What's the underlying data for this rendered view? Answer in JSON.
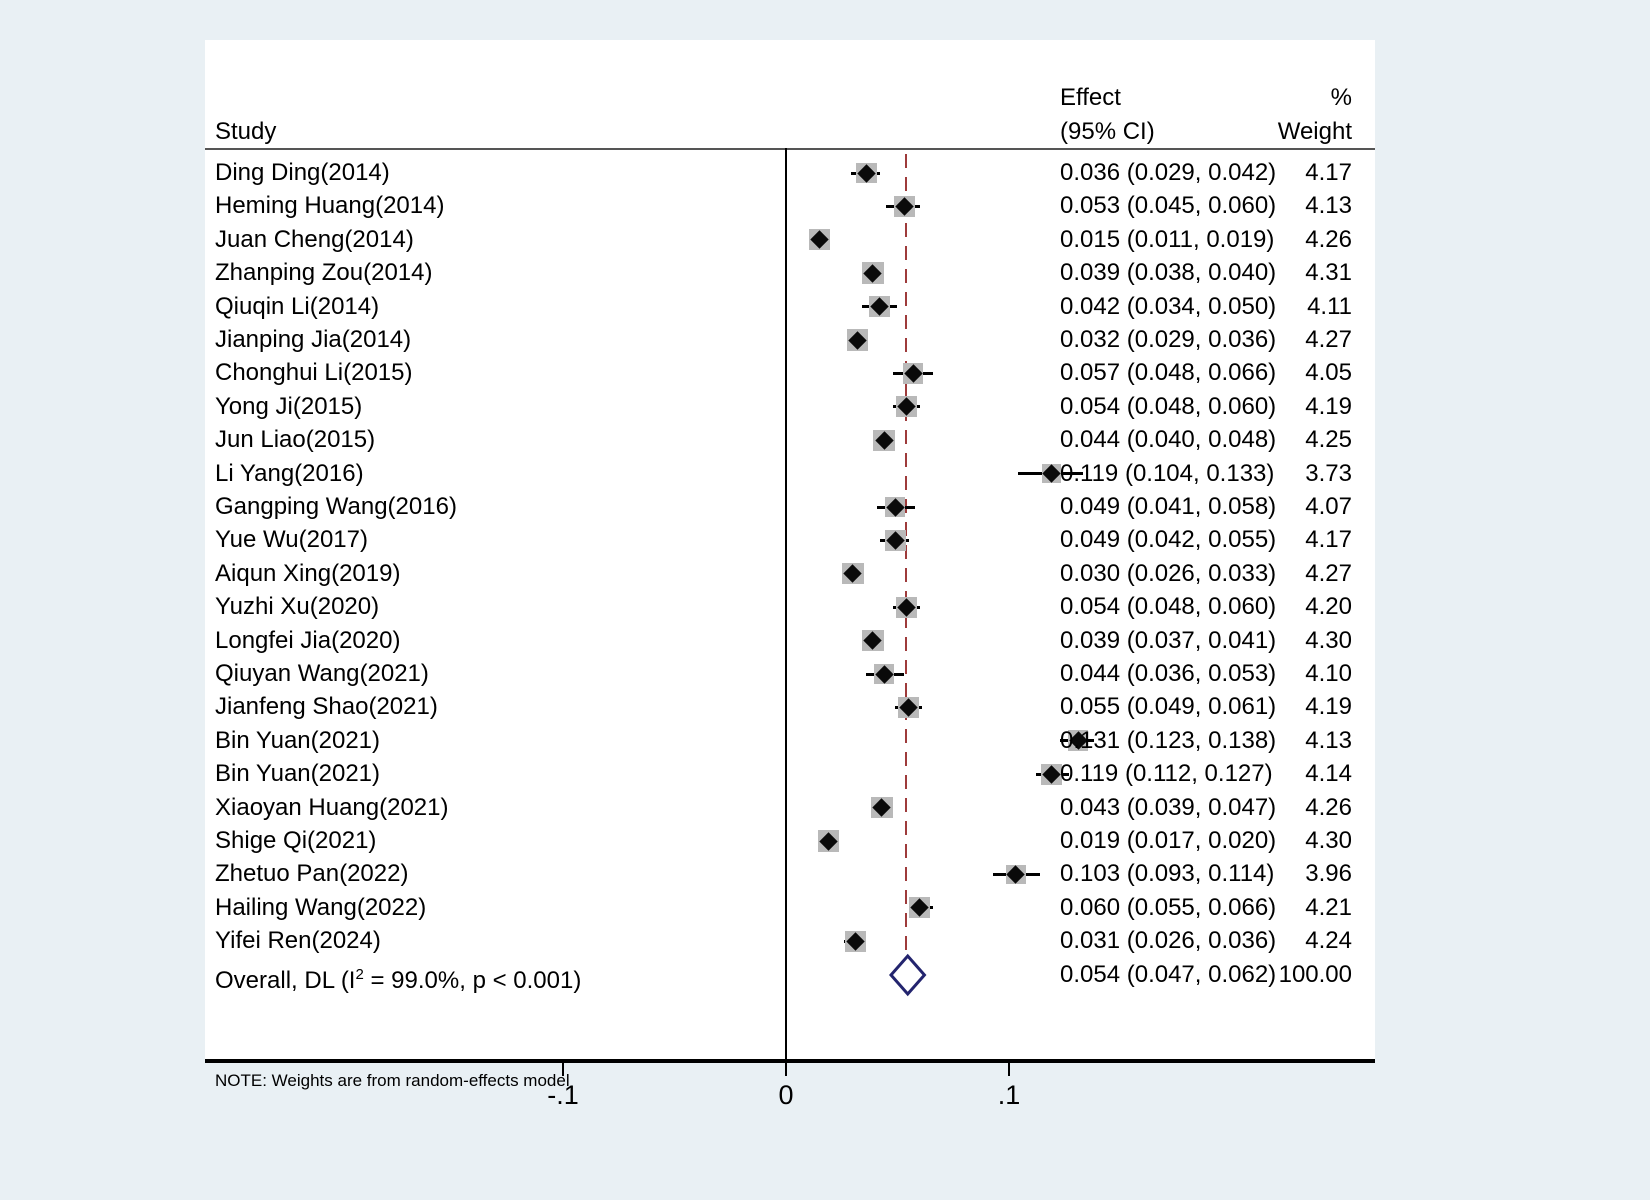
{
  "header": {
    "study": "Study",
    "effect_line1": "Effect",
    "effect_line2": "(95% CI)",
    "weight_line1": "%",
    "weight_line2": "Weight"
  },
  "note": "NOTE: Weights are from random-effects model",
  "colors": {
    "background": "#e9f0f4",
    "panel": "#ffffff",
    "marker": "#0a0a0a",
    "weight_box": "#b9b9b9",
    "dashed_line": "#9e3b3b",
    "overall_diamond": "#23246e"
  },
  "chart_data": {
    "type": "forest",
    "title": "",
    "xlabel": "",
    "x_axis": {
      "tick_labels": [
        "-.1",
        "0",
        ".1"
      ],
      "tick_values": [
        -0.1,
        0,
        0.1
      ],
      "zero_line": 0,
      "dashed_line_at": 0.054
    },
    "studies": [
      {
        "name": "Ding Ding(2014)",
        "est": 0.036,
        "lo": 0.029,
        "hi": 0.042,
        "weight": 4.17,
        "effect_label": "0.036 (0.029, 0.042)",
        "weight_label": "4.17"
      },
      {
        "name": "Heming Huang(2014)",
        "est": 0.053,
        "lo": 0.045,
        "hi": 0.06,
        "weight": 4.13,
        "effect_label": "0.053 (0.045, 0.060)",
        "weight_label": "4.13"
      },
      {
        "name": "Juan Cheng(2014)",
        "est": 0.015,
        "lo": 0.011,
        "hi": 0.019,
        "weight": 4.26,
        "effect_label": "0.015 (0.011, 0.019)",
        "weight_label": "4.26"
      },
      {
        "name": "Zhanping Zou(2014)",
        "est": 0.039,
        "lo": 0.038,
        "hi": 0.04,
        "weight": 4.31,
        "effect_label": "0.039 (0.038, 0.040)",
        "weight_label": "4.31"
      },
      {
        "name": "Qiuqin Li(2014)",
        "est": 0.042,
        "lo": 0.034,
        "hi": 0.05,
        "weight": 4.11,
        "effect_label": "0.042 (0.034, 0.050)",
        "weight_label": "4.11"
      },
      {
        "name": "Jianping Jia(2014)",
        "est": 0.032,
        "lo": 0.029,
        "hi": 0.036,
        "weight": 4.27,
        "effect_label": "0.032 (0.029, 0.036)",
        "weight_label": "4.27"
      },
      {
        "name": "Chonghui Li(2015)",
        "est": 0.057,
        "lo": 0.048,
        "hi": 0.066,
        "weight": 4.05,
        "effect_label": "0.057 (0.048, 0.066)",
        "weight_label": "4.05"
      },
      {
        "name": "Yong Ji(2015)",
        "est": 0.054,
        "lo": 0.048,
        "hi": 0.06,
        "weight": 4.19,
        "effect_label": "0.054 (0.048, 0.060)",
        "weight_label": "4.19"
      },
      {
        "name": "Jun Liao(2015)",
        "est": 0.044,
        "lo": 0.04,
        "hi": 0.048,
        "weight": 4.25,
        "effect_label": "0.044 (0.040, 0.048)",
        "weight_label": "4.25"
      },
      {
        "name": "Li Yang(2016)",
        "est": 0.119,
        "lo": 0.104,
        "hi": 0.133,
        "weight": 3.73,
        "effect_label": "0.119 (0.104, 0.133)",
        "weight_label": "3.73"
      },
      {
        "name": "Gangping Wang(2016)",
        "est": 0.049,
        "lo": 0.041,
        "hi": 0.058,
        "weight": 4.07,
        "effect_label": "0.049 (0.041, 0.058)",
        "weight_label": "4.07"
      },
      {
        "name": "Yue Wu(2017)",
        "est": 0.049,
        "lo": 0.042,
        "hi": 0.055,
        "weight": 4.17,
        "effect_label": "0.049 (0.042, 0.055)",
        "weight_label": "4.17"
      },
      {
        "name": "Aiqun Xing(2019)",
        "est": 0.03,
        "lo": 0.026,
        "hi": 0.033,
        "weight": 4.27,
        "effect_label": "0.030 (0.026, 0.033)",
        "weight_label": "4.27"
      },
      {
        "name": "Yuzhi Xu(2020)",
        "est": 0.054,
        "lo": 0.048,
        "hi": 0.06,
        "weight": 4.2,
        "effect_label": "0.054 (0.048, 0.060)",
        "weight_label": "4.20"
      },
      {
        "name": "Longfei Jia(2020)",
        "est": 0.039,
        "lo": 0.037,
        "hi": 0.041,
        "weight": 4.3,
        "effect_label": "0.039 (0.037, 0.041)",
        "weight_label": "4.30"
      },
      {
        "name": "Qiuyan Wang(2021)",
        "est": 0.044,
        "lo": 0.036,
        "hi": 0.053,
        "weight": 4.1,
        "effect_label": "0.044 (0.036, 0.053)",
        "weight_label": "4.10"
      },
      {
        "name": "Jianfeng Shao(2021)",
        "est": 0.055,
        "lo": 0.049,
        "hi": 0.061,
        "weight": 4.19,
        "effect_label": "0.055 (0.049, 0.061)",
        "weight_label": "4.19"
      },
      {
        "name": "Bin Yuan(2021)",
        "est": 0.131,
        "lo": 0.123,
        "hi": 0.138,
        "weight": 4.13,
        "effect_label": "0.131 (0.123, 0.138)",
        "weight_label": "4.13"
      },
      {
        "name": "Bin Yuan(2021)",
        "est": 0.119,
        "lo": 0.112,
        "hi": 0.127,
        "weight": 4.14,
        "effect_label": "0.119 (0.112, 0.127)",
        "weight_label": "4.14"
      },
      {
        "name": "Xiaoyan Huang(2021)",
        "est": 0.043,
        "lo": 0.039,
        "hi": 0.047,
        "weight": 4.26,
        "effect_label": "0.043 (0.039, 0.047)",
        "weight_label": "4.26"
      },
      {
        "name": "Shige Qi(2021)",
        "est": 0.019,
        "lo": 0.017,
        "hi": 0.02,
        "weight": 4.3,
        "effect_label": "0.019 (0.017, 0.020)",
        "weight_label": "4.30"
      },
      {
        "name": "Zhetuo Pan(2022)",
        "est": 0.103,
        "lo": 0.093,
        "hi": 0.114,
        "weight": 3.96,
        "effect_label": "0.103 (0.093, 0.114)",
        "weight_label": "3.96"
      },
      {
        "name": "Hailing Wang(2022)",
        "est": 0.06,
        "lo": 0.055,
        "hi": 0.066,
        "weight": 4.21,
        "effect_label": "0.060 (0.055, 0.066)",
        "weight_label": "4.21"
      },
      {
        "name": "Yifei Ren(2024)",
        "est": 0.031,
        "lo": 0.026,
        "hi": 0.036,
        "weight": 4.24,
        "effect_label": "0.031 (0.026, 0.036)",
        "weight_label": "4.24"
      }
    ],
    "overall": {
      "label_pre": "Overall, DL (I",
      "label_sup": "2",
      "label_post": " = 99.0%, p < 0.001)",
      "est": 0.054,
      "lo": 0.047,
      "hi": 0.062,
      "effect_label": "0.054 (0.047, 0.062)",
      "weight_label": "100.00"
    }
  }
}
